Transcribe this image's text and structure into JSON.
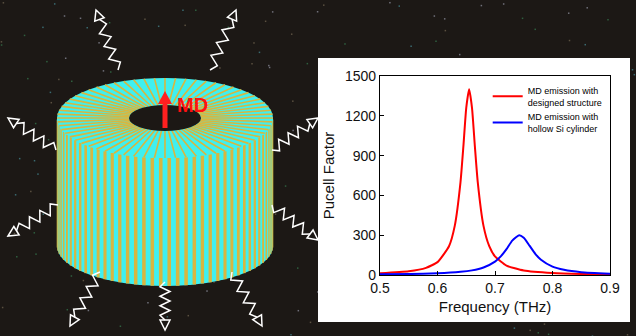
{
  "illustration": {
    "label": "MD"
  },
  "chart_data": {
    "type": "line",
    "x_label": "Frequency (THz)",
    "y_label": "Pucell Factor",
    "xlim": [
      0.5,
      0.9
    ],
    "xticks": [
      0.5,
      0.6,
      0.7,
      0.8,
      0.9
    ],
    "ylim": [
      0,
      1500
    ],
    "yticks": [
      0,
      300,
      600,
      900,
      1200,
      1500
    ],
    "grid": false,
    "legend": "top right",
    "series": [
      {
        "name": "MD emission with designed structure",
        "color": "#ff0000",
        "x": [
          0.5,
          0.55,
          0.58,
          0.6,
          0.62,
          0.63,
          0.64,
          0.645,
          0.65,
          0.655,
          0.66,
          0.665,
          0.67,
          0.68,
          0.69,
          0.7,
          0.72,
          0.75,
          0.8,
          0.85,
          0.9
        ],
        "values": [
          13,
          28,
          54,
          97,
          217,
          370,
          700,
          969,
          1260,
          1400,
          1260,
          969,
          700,
          370,
          217,
          140,
          71,
          34,
          15,
          8,
          5
        ]
      },
      {
        "name": "MD emission with hollow Si cylinder",
        "color": "#0000ff",
        "x": [
          0.5,
          0.55,
          0.6,
          0.64,
          0.66,
          0.68,
          0.7,
          0.71,
          0.72,
          0.73,
          0.742,
          0.75,
          0.76,
          0.77,
          0.78,
          0.8,
          0.82,
          0.85,
          0.9
        ],
        "values": [
          5,
          7,
          13,
          24,
          35,
          57,
          101,
          140,
          195,
          259,
          300,
          280,
          221,
          160,
          115,
          63,
          39,
          21,
          10
        ]
      }
    ]
  }
}
